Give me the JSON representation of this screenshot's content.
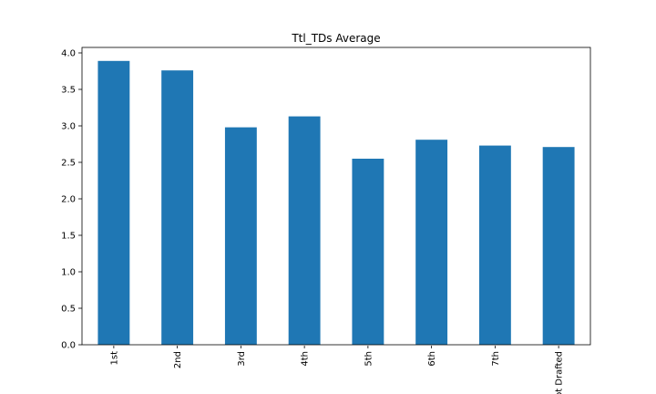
{
  "chart_data": {
    "type": "bar",
    "title": "Ttl_TDs Average",
    "xlabel": "",
    "ylabel": "",
    "categories": [
      "1st",
      "2nd",
      "3rd",
      "4th",
      "5th",
      "6th",
      "7th",
      "Not Drafted"
    ],
    "values": [
      3.89,
      3.76,
      2.98,
      3.13,
      2.55,
      2.81,
      2.73,
      2.71
    ],
    "ylim": [
      0,
      4.075
    ],
    "yticks": [
      "0.0",
      "0.5",
      "1.0",
      "1.5",
      "2.0",
      "2.5",
      "3.0",
      "3.5",
      "4.0"
    ],
    "grid": false,
    "legend": "none",
    "bar_color": "#1f77b4"
  }
}
